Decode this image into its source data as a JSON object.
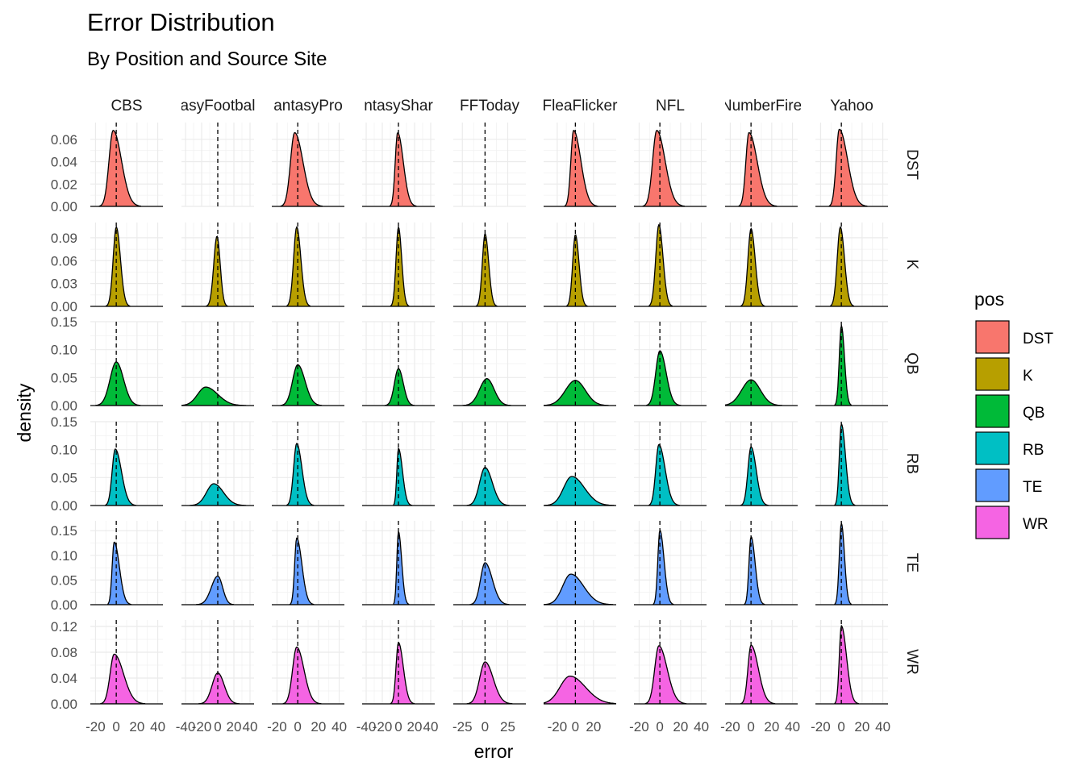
{
  "chart_data": {
    "type": "area",
    "subtype": "faceted-density",
    "title": "Error Distribution",
    "subtitle": "By Position and Source Site",
    "xlabel": "error",
    "ylabel": "density",
    "legend": {
      "title": "pos",
      "placement": "right",
      "entries": [
        {
          "label": "DST",
          "color": "#F8766D"
        },
        {
          "label": "K",
          "color": "#B79F00"
        },
        {
          "label": "QB",
          "color": "#00BA38"
        },
        {
          "label": "RB",
          "color": "#00BFC4"
        },
        {
          "label": "TE",
          "color": "#619CFF"
        },
        {
          "label": "WR",
          "color": "#F564E3"
        }
      ]
    },
    "grid": true,
    "reference_line": {
      "x": 0,
      "style": "dashed"
    },
    "columns": [
      {
        "label": "CBS",
        "xlim": [
          -25,
          45
        ],
        "ticks": [
          -20,
          0,
          20,
          40
        ],
        "tick_labels": [
          "-20",
          "0",
          "20",
          "40"
        ]
      },
      {
        "label": "FantasyFootballNerd",
        "display_label": "asyFootbal",
        "xlim": [
          -45,
          45
        ],
        "ticks": [
          -40,
          -20,
          0,
          20,
          40
        ],
        "tick_labels": [
          "-40",
          "-20",
          "0",
          "20",
          "40"
        ]
      },
      {
        "label": "FantasyPros",
        "display_label": "antasyPro",
        "xlim": [
          -25,
          45
        ],
        "ticks": [
          -20,
          0,
          20,
          40
        ],
        "tick_labels": [
          "-20",
          "0",
          "20",
          "40"
        ]
      },
      {
        "label": "FantasySharks",
        "display_label": "ntasyShar",
        "xlim": [
          -45,
          45
        ],
        "ticks": [
          -40,
          -20,
          0,
          20,
          40
        ],
        "tick_labels": [
          "-40",
          "-20",
          "0",
          "20",
          "40"
        ]
      },
      {
        "label": "FFToday",
        "xlim": [
          -35,
          45
        ],
        "ticks": [
          -25,
          0,
          25
        ],
        "tick_labels": [
          "-25",
          "0",
          "25"
        ]
      },
      {
        "label": "FleaFlicker",
        "display_label": "FleaFlicker",
        "xlim": [
          -35,
          45
        ],
        "ticks": [
          -20,
          0,
          20
        ],
        "tick_labels": [
          "-20",
          "0",
          "20"
        ]
      },
      {
        "label": "NFL",
        "xlim": [
          -25,
          45
        ],
        "ticks": [
          -20,
          0,
          20,
          40
        ],
        "tick_labels": [
          "-20",
          "0",
          "20",
          "40"
        ]
      },
      {
        "label": "NumberFire",
        "display_label": "NumberFire",
        "xlim": [
          -25,
          45
        ],
        "ticks": [
          -20,
          0,
          20,
          40
        ],
        "tick_labels": [
          "-20",
          "0",
          "20",
          "40"
        ]
      },
      {
        "label": "Yahoo",
        "xlim": [
          -25,
          45
        ],
        "ticks": [
          -20,
          0,
          20,
          40
        ],
        "tick_labels": [
          "-20",
          "0",
          "20",
          "40"
        ]
      }
    ],
    "rows": [
      {
        "label": "DST",
        "ylim": [
          0,
          0.075
        ],
        "ticks": [
          0,
          0.02,
          0.04,
          0.06
        ],
        "tick_labels": [
          "0.00",
          "0.02",
          "0.04",
          "0.06"
        ]
      },
      {
        "label": "K",
        "ylim": [
          0,
          0.11
        ],
        "ticks": [
          0,
          0.03,
          0.06,
          0.09
        ],
        "tick_labels": [
          "0.00",
          "0.03",
          "0.06",
          "0.09"
        ]
      },
      {
        "label": "QB",
        "ylim": [
          0,
          0.15
        ],
        "ticks": [
          0,
          0.05,
          0.1,
          0.15
        ],
        "tick_labels": [
          "0.00",
          "0.05",
          "0.10",
          "0.15"
        ]
      },
      {
        "label": "RB",
        "ylim": [
          0,
          0.15
        ],
        "ticks": [
          0,
          0.05,
          0.1,
          0.15
        ],
        "tick_labels": [
          "0.00",
          "0.05",
          "0.10",
          "0.15"
        ]
      },
      {
        "label": "TE",
        "ylim": [
          0,
          0.17
        ],
        "ticks": [
          0,
          0.05,
          0.1,
          0.15
        ],
        "tick_labels": [
          "0.00",
          "0.05",
          "0.10",
          "0.15"
        ]
      },
      {
        "label": "WR",
        "ylim": [
          0,
          0.13
        ],
        "ticks": [
          0,
          0.04,
          0.08,
          0.12
        ],
        "tick_labels": [
          "0.00",
          "0.04",
          "0.08",
          "0.12"
        ]
      }
    ],
    "panels": [
      [
        {
          "peak": 0.068,
          "mode": -3,
          "sl": 4,
          "sr": 8
        },
        null,
        {
          "peak": 0.066,
          "mode": -3,
          "sl": 4,
          "sr": 8
        },
        {
          "peak": 0.066,
          "mode": -1,
          "sl": 3,
          "sr": 7
        },
        null,
        {
          "peak": 0.068,
          "mode": -2,
          "sl": 3,
          "sr": 8
        },
        {
          "peak": 0.068,
          "mode": -3,
          "sl": 4,
          "sr": 8
        },
        {
          "peak": 0.066,
          "mode": -2,
          "sl": 3,
          "sr": 8
        },
        {
          "peak": 0.069,
          "mode": -2,
          "sl": 3,
          "sr": 8
        }
      ],
      [
        {
          "peak": 0.104,
          "mode": 0,
          "sl": 3,
          "sr": 4
        },
        {
          "peak": 0.092,
          "mode": -1,
          "sl": 4,
          "sr": 4
        },
        {
          "peak": 0.104,
          "mode": -1,
          "sl": 3,
          "sr": 4
        },
        {
          "peak": 0.104,
          "mode": 0,
          "sl": 3,
          "sr": 4
        },
        {
          "peak": 0.095,
          "mode": 0,
          "sl": 3,
          "sr": 4
        },
        {
          "peak": 0.094,
          "mode": 0,
          "sl": 3,
          "sr": 4
        },
        {
          "peak": 0.107,
          "mode": -1,
          "sl": 3,
          "sr": 4
        },
        {
          "peak": 0.102,
          "mode": 0,
          "sl": 3,
          "sr": 4
        },
        {
          "peak": 0.104,
          "mode": -1,
          "sl": 3,
          "sr": 4
        }
      ],
      [
        {
          "peak": 0.078,
          "mode": 0,
          "sl": 6,
          "sr": 7
        },
        {
          "peak": 0.033,
          "mode": -15,
          "sl": 10,
          "sr": 15
        },
        {
          "peak": 0.073,
          "mode": 0,
          "sl": 5,
          "sr": 7
        },
        {
          "peak": 0.066,
          "mode": 0,
          "sl": 5,
          "sr": 6
        },
        {
          "peak": 0.048,
          "mode": 2,
          "sl": 8,
          "sr": 8
        },
        {
          "peak": 0.045,
          "mode": 0,
          "sl": 11,
          "sr": 11
        },
        {
          "peak": 0.098,
          "mode": 0,
          "sl": 4,
          "sr": 6
        },
        {
          "peak": 0.046,
          "mode": 0,
          "sl": 9,
          "sr": 9
        },
        {
          "peak": 0.143,
          "mode": 0,
          "sl": 2,
          "sr": 3
        }
      ],
      [
        {
          "peak": 0.101,
          "mode": -1,
          "sl": 3,
          "sr": 6
        },
        {
          "peak": 0.039,
          "mode": -5,
          "sl": 9,
          "sr": 12
        },
        {
          "peak": 0.111,
          "mode": -1,
          "sl": 3,
          "sr": 5
        },
        {
          "peak": 0.102,
          "mode": 0,
          "sl": 2,
          "sr": 5
        },
        {
          "peak": 0.068,
          "mode": 0,
          "sl": 6,
          "sr": 8
        },
        {
          "peak": 0.052,
          "mode": -4,
          "sl": 9,
          "sr": 14
        },
        {
          "peak": 0.109,
          "mode": -1,
          "sl": 3,
          "sr": 6
        },
        {
          "peak": 0.105,
          "mode": 0,
          "sl": 3,
          "sr": 5
        },
        {
          "peak": 0.146,
          "mode": 0,
          "sl": 2,
          "sr": 4
        }
      ],
      [
        {
          "peak": 0.127,
          "mode": -2,
          "sl": 2,
          "sr": 5
        },
        {
          "peak": 0.058,
          "mode": 0,
          "sl": 8,
          "sr": 6
        },
        {
          "peak": 0.135,
          "mode": -1,
          "sl": 2,
          "sr": 5
        },
        {
          "peak": 0.148,
          "mode": 0,
          "sl": 2,
          "sr": 4
        },
        {
          "peak": 0.085,
          "mode": 0,
          "sl": 5,
          "sr": 8
        },
        {
          "peak": 0.062,
          "mode": -5,
          "sl": 9,
          "sr": 14
        },
        {
          "peak": 0.151,
          "mode": 0,
          "sl": 2,
          "sr": 4
        },
        {
          "peak": 0.138,
          "mode": 0,
          "sl": 2,
          "sr": 4
        },
        {
          "peak": 0.165,
          "mode": 0,
          "sl": 2,
          "sr": 3
        }
      ],
      [
        {
          "peak": 0.077,
          "mode": -2,
          "sl": 4,
          "sr": 9
        },
        {
          "peak": 0.048,
          "mode": 0,
          "sl": 7,
          "sr": 8
        },
        {
          "peak": 0.088,
          "mode": -1,
          "sl": 4,
          "sr": 7
        },
        {
          "peak": 0.095,
          "mode": 0,
          "sl": 3,
          "sr": 6
        },
        {
          "peak": 0.065,
          "mode": 0,
          "sl": 6,
          "sr": 9
        },
        {
          "peak": 0.043,
          "mode": -6,
          "sl": 11,
          "sr": 17
        },
        {
          "peak": 0.09,
          "mode": -1,
          "sl": 4,
          "sr": 8
        },
        {
          "peak": 0.091,
          "mode": 0,
          "sl": 3,
          "sr": 7
        },
        {
          "peak": 0.121,
          "mode": 0,
          "sl": 2,
          "sr": 5
        }
      ]
    ]
  }
}
